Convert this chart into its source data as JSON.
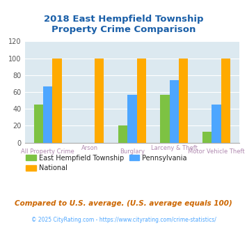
{
  "title": "2018 East Hempfield Township\nProperty Crime Comparison",
  "categories": [
    "All Property Crime",
    "Arson",
    "Burglary",
    "Larceny & Theft",
    "Motor Vehicle Theft"
  ],
  "series": {
    "East Hempfield Township": [
      45,
      0,
      20,
      57,
      13
    ],
    "Pennsylvania": [
      67,
      0,
      57,
      74,
      45
    ],
    "National": [
      100,
      100,
      100,
      100,
      100
    ]
  },
  "colors": {
    "East Hempfield Township": "#7dc243",
    "Pennsylvania": "#4da6ff",
    "National": "#ffaa00"
  },
  "ylim": [
    0,
    120
  ],
  "yticks": [
    0,
    20,
    40,
    60,
    80,
    100,
    120
  ],
  "title_color": "#1a5fa8",
  "xlabel_color": "#b08ab0",
  "plot_bg": "#dce9f0",
  "footnote1": "Compared to U.S. average. (U.S. average equals 100)",
  "footnote2": "© 2025 CityRating.com - https://www.cityrating.com/crime-statistics/",
  "footnote1_color": "#cc6600",
  "footnote2_color": "#4da6ff",
  "bar_width": 0.22
}
